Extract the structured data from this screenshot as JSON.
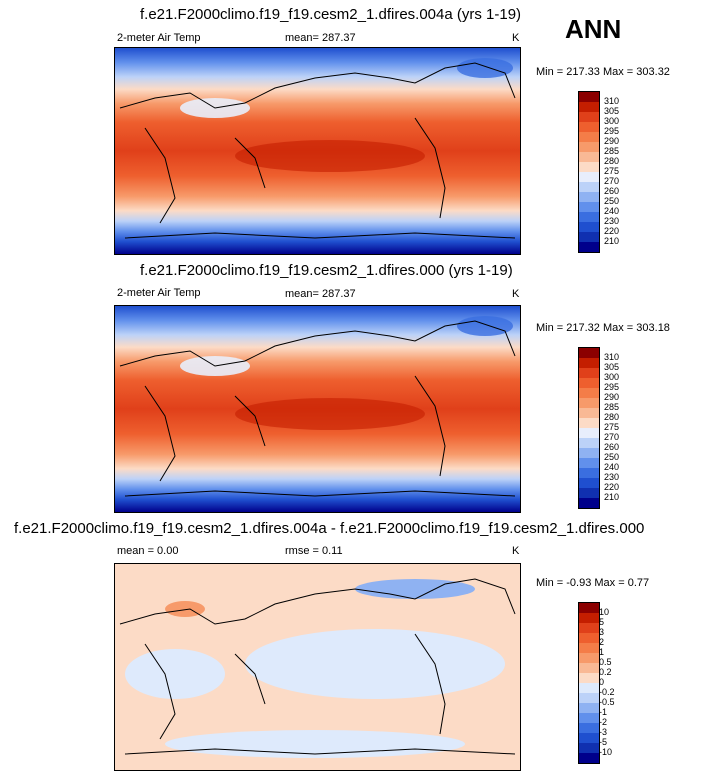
{
  "season": "ANN",
  "panels": [
    {
      "title": "f.e21.F2000climo.f19_f19.cesm2_1.dfires.004a (yrs 1-19)",
      "variable": "2-meter Air Temp",
      "stat": "mean= 287.37",
      "units": "K",
      "minmax": "Min = 217.33 Max = 303.32"
    },
    {
      "title": "f.e21.F2000climo.f19_f19.cesm2_1.dfires.000 (yrs 1-19)",
      "variable": "2-meter Air Temp",
      "stat": "mean= 287.37",
      "units": "K",
      "minmax": "Min = 217.32 Max = 303.18"
    },
    {
      "title": "f.e21.F2000climo.f19_f19.cesm2_1.dfires.004a - f.e21.F2000climo.f19_f19.cesm2_1.dfires.000",
      "variable": "mean =   0.00",
      "stat": "rmse =   0.11",
      "units": "K",
      "minmax": "Min =  -0.93 Max =   0.77"
    }
  ],
  "colorbar_abs": {
    "labels": [
      "310",
      "305",
      "300",
      "295",
      "290",
      "285",
      "280",
      "275",
      "270",
      "260",
      "250",
      "240",
      "230",
      "220",
      "210"
    ],
    "colors": [
      "#8b0000",
      "#c41e00",
      "#e0401a",
      "#ee5f2e",
      "#f47d48",
      "#f79a6a",
      "#f9b995",
      "#fcdbc6",
      "#e8eefc",
      "#bcd2f8",
      "#8fb2f2",
      "#6190ec",
      "#3a6ee0",
      "#1f4fcf",
      "#1030b0",
      "#00008b"
    ]
  },
  "colorbar_diff": {
    "labels": [
      "10",
      "5",
      "3",
      "2",
      "1",
      "0.5",
      "0.2",
      "0",
      "-0.2",
      "-0.5",
      "-1",
      "-2",
      "-3",
      "-5",
      "-10"
    ],
    "colors": [
      "#8b0000",
      "#c41e00",
      "#e0401a",
      "#ee5f2e",
      "#f47d48",
      "#f79a6a",
      "#f9b995",
      "#fcdbc6",
      "#deeafc",
      "#bcd2f8",
      "#8fb2f2",
      "#6190ec",
      "#3a6ee0",
      "#1f4fcf",
      "#1030b0",
      "#00008b"
    ]
  }
}
